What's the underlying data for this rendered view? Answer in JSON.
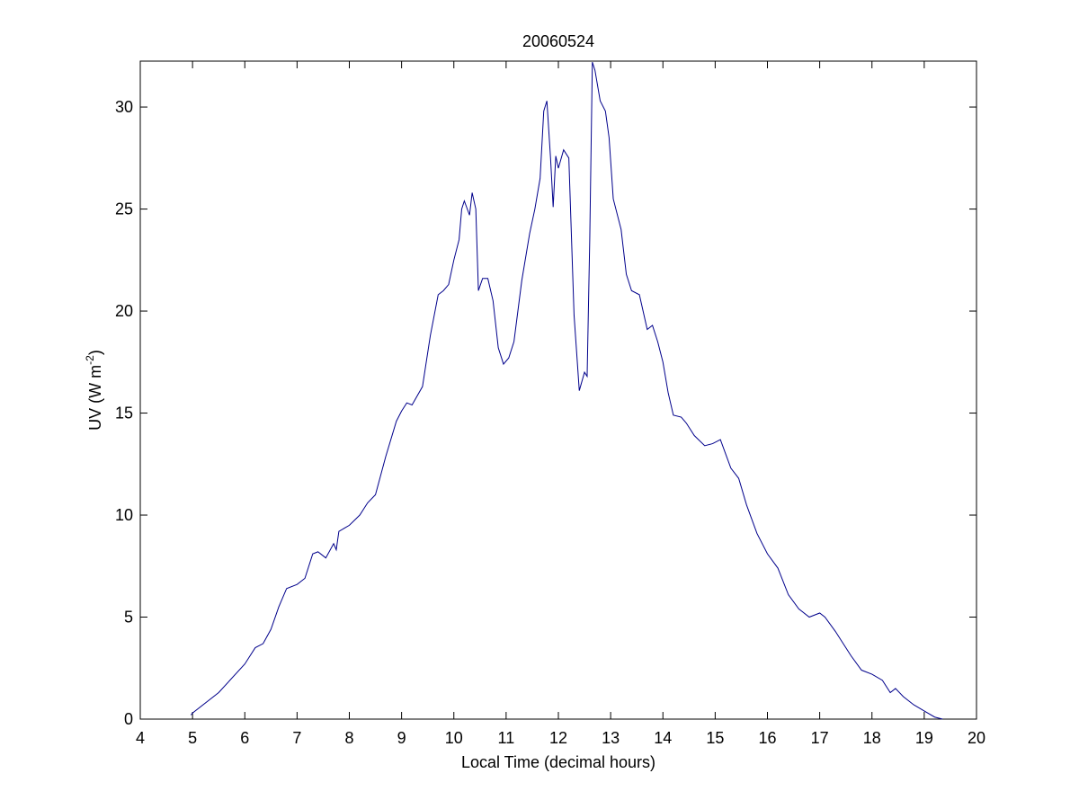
{
  "chart_data": {
    "type": "line",
    "title": "20060524",
    "xlabel": "Local Time (decimal hours)",
    "ylabel": {
      "text": "UV (W m",
      "sup": "-2",
      "tail": ")"
    },
    "xlim": [
      4,
      20
    ],
    "xticks": [
      4,
      5,
      6,
      7,
      8,
      9,
      10,
      11,
      12,
      13,
      14,
      15,
      16,
      17,
      18,
      19,
      20
    ],
    "ylim": [
      0,
      32.25
    ],
    "yticks": [
      0,
      5,
      10,
      15,
      20,
      25,
      30
    ],
    "series": [
      {
        "color": "#00008b",
        "x": [
          4.97,
          5.0,
          5.5,
          6.0,
          6.1,
          6.2,
          6.35,
          6.5,
          6.65,
          6.8,
          7.0,
          7.15,
          7.3,
          7.4,
          7.55,
          7.7,
          7.75,
          7.8,
          8.0,
          8.2,
          8.35,
          8.5,
          8.7,
          8.9,
          9.0,
          9.1,
          9.2,
          9.4,
          9.55,
          9.7,
          9.8,
          9.9,
          10.0,
          10.1,
          10.15,
          10.2,
          10.3,
          10.35,
          10.42,
          10.47,
          10.55,
          10.65,
          10.75,
          10.85,
          10.95,
          11.05,
          11.15,
          11.3,
          11.45,
          11.55,
          11.65,
          11.72,
          11.78,
          11.85,
          11.9,
          11.95,
          12.0,
          12.1,
          12.2,
          12.3,
          12.4,
          12.5,
          12.55,
          12.6,
          12.65,
          12.7,
          12.8,
          12.9,
          12.97,
          13.05,
          13.2,
          13.3,
          13.4,
          13.55,
          13.7,
          13.8,
          13.9,
          14.0,
          14.1,
          14.2,
          14.35,
          14.45,
          14.6,
          14.8,
          14.95,
          15.1,
          15.3,
          15.45,
          15.6,
          15.8,
          16.0,
          16.2,
          16.4,
          16.6,
          16.8,
          17.0,
          17.1,
          17.3,
          17.6,
          17.8,
          18.0,
          18.2,
          18.35,
          18.45,
          18.6,
          18.8,
          19.0,
          19.2,
          19.35
        ],
        "values": [
          0.2,
          0.3,
          1.3,
          2.7,
          3.1,
          3.5,
          3.7,
          4.4,
          5.5,
          6.4,
          6.6,
          6.9,
          8.1,
          8.2,
          7.9,
          8.6,
          8.3,
          9.2,
          9.5,
          10.0,
          10.6,
          11.0,
          12.9,
          14.6,
          15.1,
          15.5,
          15.4,
          16.3,
          18.8,
          20.8,
          21.0,
          21.3,
          22.5,
          23.5,
          25.0,
          25.4,
          24.7,
          25.8,
          25.0,
          21.0,
          21.6,
          21.6,
          20.5,
          18.2,
          17.4,
          17.7,
          18.5,
          21.5,
          23.8,
          25.0,
          26.5,
          29.8,
          30.3,
          27.5,
          25.1,
          27.6,
          27.0,
          27.9,
          27.5,
          19.8,
          16.1,
          17.0,
          16.8,
          23.5,
          32.2,
          31.8,
          30.3,
          29.8,
          28.5,
          25.5,
          24.0,
          21.8,
          21.0,
          20.8,
          19.1,
          19.3,
          18.5,
          17.5,
          16.0,
          14.9,
          14.8,
          14.5,
          13.9,
          13.4,
          13.5,
          13.7,
          12.3,
          11.8,
          10.5,
          9.1,
          8.1,
          7.4,
          6.1,
          5.4,
          5.0,
          5.2,
          5.0,
          4.3,
          3.1,
          2.4,
          2.2,
          1.9,
          1.3,
          1.5,
          1.1,
          0.7,
          0.4,
          0.1,
          0.0
        ]
      }
    ]
  }
}
